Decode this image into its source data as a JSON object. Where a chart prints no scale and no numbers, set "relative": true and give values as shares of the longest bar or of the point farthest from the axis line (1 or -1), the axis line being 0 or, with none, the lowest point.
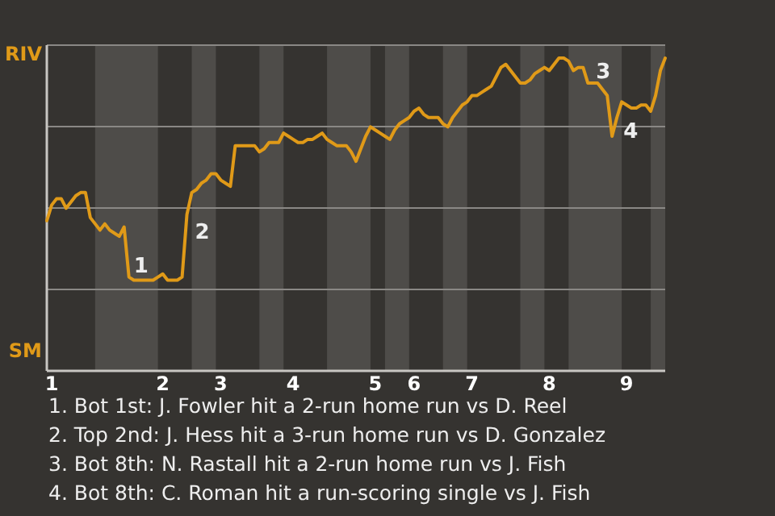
{
  "chart_data": {
    "type": "line",
    "relative": true,
    "categories": [
      null,
      "1",
      null,
      null,
      null,
      null,
      null,
      null,
      null,
      null,
      null,
      null,
      null,
      null,
      null,
      null,
      null,
      null,
      null,
      null,
      null,
      null,
      null,
      null,
      "2",
      null,
      null,
      null,
      null,
      null,
      null,
      null,
      null,
      null,
      null,
      null,
      "3",
      null,
      null,
      null,
      null,
      null,
      null,
      null,
      null,
      null,
      null,
      null,
      null,
      null,
      null,
      "4",
      null,
      null,
      null,
      null,
      null,
      null,
      null,
      null,
      null,
      null,
      null,
      null,
      null,
      null,
      null,
      null,
      "5",
      null,
      null,
      null,
      null,
      null,
      null,
      null,
      "6",
      null,
      null,
      null,
      null,
      null,
      null,
      null,
      null,
      null,
      null,
      null,
      "7",
      null,
      null,
      null,
      null,
      null,
      null,
      null,
      null,
      null,
      null,
      null,
      null,
      null,
      null,
      null,
      "8",
      null,
      null,
      null,
      null,
      null,
      null,
      null,
      null,
      null,
      null,
      null,
      null,
      null,
      null,
      null,
      "9",
      null,
      null,
      null,
      null,
      null,
      null,
      null,
      null
    ],
    "series": [
      {
        "color": "#e09a18",
        "values": [
          0.48,
          0.53,
          0.55,
          0.55,
          0.52,
          0.54,
          0.56,
          0.57,
          0.57,
          0.49,
          0.47,
          0.45,
          0.47,
          0.45,
          0.44,
          0.43,
          0.46,
          0.3,
          0.29,
          0.29,
          0.29,
          0.29,
          0.29,
          0.3,
          0.31,
          0.29,
          0.29,
          0.29,
          0.3,
          0.5,
          0.57,
          0.58,
          0.6,
          0.61,
          0.63,
          0.63,
          0.61,
          0.6,
          0.59,
          0.72,
          0.72,
          0.72,
          0.72,
          0.72,
          0.7,
          0.71,
          0.73,
          0.73,
          0.73,
          0.76,
          0.75,
          0.74,
          0.73,
          0.73,
          0.74,
          0.74,
          0.75,
          0.76,
          0.74,
          0.73,
          0.72,
          0.72,
          0.72,
          0.7,
          0.67,
          0.71,
          0.75,
          0.78,
          0.77,
          0.76,
          0.75,
          0.74,
          0.77,
          0.79,
          0.8,
          0.81,
          0.83,
          0.84,
          0.82,
          0.81,
          0.81,
          0.81,
          0.79,
          0.78,
          0.81,
          0.83,
          0.85,
          0.86,
          0.88,
          0.88,
          0.89,
          0.9,
          0.91,
          0.94,
          0.97,
          0.98,
          0.96,
          0.94,
          0.92,
          0.92,
          0.93,
          0.95,
          0.96,
          0.97,
          0.96,
          0.98,
          1,
          1,
          0.99,
          0.96,
          0.97,
          0.97,
          0.92,
          0.92,
          0.92,
          0.9,
          0.88,
          0.75,
          0.81,
          0.86,
          0.85,
          0.84,
          0.84,
          0.85,
          0.85,
          0.83,
          0.88,
          0.96,
          1
        ]
      }
    ],
    "grid": "y",
    "annotations": [
      "1",
      "2",
      "3",
      "4",
      "RIV",
      "SM",
      "1. Bot 1st: J. Fowler hit a 2-run home run vs D. Reel",
      "2. Top 2nd: J. Hess hit a 3-run home run vs D. Gonzalez",
      "3. Bot 8th: N. Rastall hit a 2-run home run vs J. Fish",
      "4. Bot 8th: C. Roman hit a run-scoring single vs J. Fish"
    ]
  }
}
